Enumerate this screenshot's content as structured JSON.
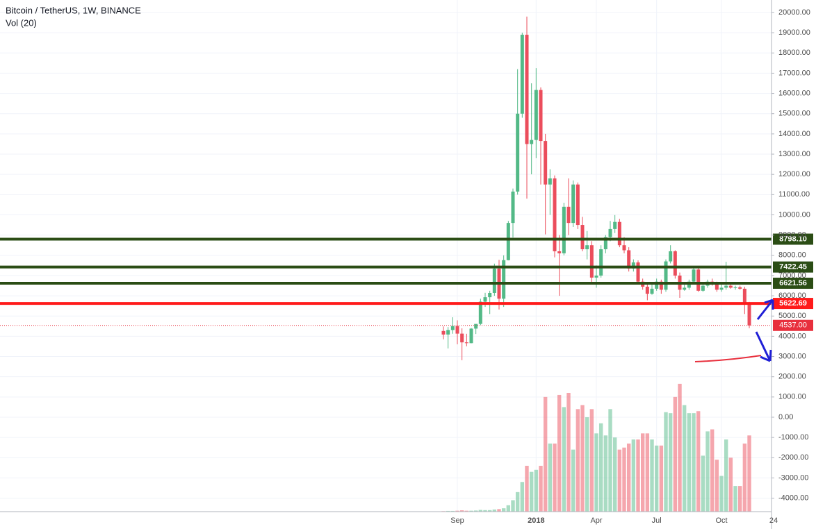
{
  "chart_data": {
    "type": "candlestick",
    "title": "Bitcoin / TetherUS, 1W, BINANCE",
    "subtitle": "Vol (20)",
    "categories": [
      null,
      null,
      null,
      "Sep",
      null,
      null,
      null,
      null,
      null,
      null,
      null,
      null,
      null,
      null,
      null,
      null,
      null,
      null,
      null,
      null,
      "2018",
      null,
      null,
      null,
      null,
      null,
      null,
      null,
      null,
      null,
      null,
      null,
      null,
      "Apr",
      null,
      null,
      null,
      null,
      null,
      null,
      null,
      null,
      null,
      null,
      null,
      null,
      "Jul",
      null,
      null,
      null,
      null,
      null,
      null,
      null,
      null,
      null,
      null,
      null,
      null,
      null,
      "Oct",
      null,
      null,
      null,
      null,
      null,
      null
    ],
    "time_edge_label": "24",
    "open": [
      4261,
      4086,
      4310,
      4509,
      4130,
      3699,
      3660,
      4378,
      4610,
      5710,
      5930,
      6140,
      7345,
      5857,
      7761,
      9600,
      11150,
      15000,
      18900,
      13500,
      13700,
      16170,
      13650,
      11500,
      11800,
      8200,
      8100,
      10400,
      9600,
      11500,
      9500,
      8300,
      8500,
      6900,
      7000,
      8300,
      8900,
      9300,
      9650,
      8500,
      8250,
      7350,
      7650,
      6700,
      6450,
      6100,
      6350,
      6700,
      6300,
      7700,
      8200,
      7000,
      6300,
      6400,
      6700,
      7300,
      6250,
      6500,
      6700,
      6600,
      6300,
      6400,
      6500,
      6400,
      6420,
      6350,
      5600
    ],
    "high": [
      4485,
      4453,
      4939,
      4788,
      4394,
      4123,
      4406,
      4470,
      5856,
      6147,
      6250,
      7590,
      7776,
      8000,
      9700,
      11300,
      17200,
      19000,
      19798,
      16500,
      17250,
      16300,
      14000,
      12250,
      11950,
      9000,
      10600,
      11800,
      11700,
      11600,
      9900,
      9200,
      8700,
      7500,
      8500,
      9000,
      9700,
      9990,
      9800,
      8900,
      8400,
      7800,
      7750,
      6850,
      6600,
      6550,
      6850,
      6800,
      7800,
      8500,
      8250,
      7150,
      6550,
      6800,
      7400,
      7400,
      6600,
      6800,
      6850,
      6700,
      6600,
      7680,
      6600,
      6500,
      6500,
      6450,
      5700
    ],
    "low": [
      3850,
      3400,
      4124,
      3603,
      2817,
      3505,
      3653,
      4110,
      4550,
      5450,
      5100,
      6000,
      5325,
      5450,
      7750,
      8880,
      11000,
      14800,
      10800,
      12000,
      12800,
      11500,
      9035,
      10000,
      7900,
      6000,
      8000,
      9000,
      9400,
      9300,
      8200,
      7800,
      6600,
      6400,
      6900,
      8100,
      8700,
      9100,
      8400,
      8100,
      7200,
      7200,
      6600,
      6300,
      5780,
      6050,
      6250,
      6100,
      6200,
      7600,
      6850,
      5900,
      6250,
      6300,
      6650,
      6200,
      6200,
      6400,
      6500,
      6200,
      6200,
      6300,
      6350,
      6300,
      6300,
      5100,
      4400
    ],
    "close": [
      4086,
      4310,
      4509,
      4130,
      3699,
      3660,
      4378,
      4610,
      5710,
      5930,
      6140,
      7345,
      5857,
      7761,
      9600,
      11150,
      15000,
      18900,
      13500,
      13700,
      16170,
      13650,
      11500,
      11800,
      8200,
      8100,
      10400,
      9600,
      11500,
      9500,
      8300,
      8500,
      6900,
      7000,
      8300,
      8900,
      9300,
      9650,
      8500,
      8250,
      7350,
      7650,
      6700,
      6450,
      6100,
      6350,
      6700,
      6300,
      7700,
      8200,
      7000,
      6300,
      6400,
      6700,
      7300,
      6250,
      6500,
      6700,
      6600,
      6300,
      6400,
      6500,
      6400,
      6420,
      6350,
      5600,
      4537
    ],
    "volume": [
      -4640,
      -4630,
      -4630,
      -4620,
      -4600,
      -4620,
      -4620,
      -4610,
      -4580,
      -4590,
      -4590,
      -4560,
      -4540,
      -4500,
      -4350,
      -4100,
      -3700,
      -3200,
      -2400,
      -2700,
      -2600,
      -2400,
      1000,
      -1300,
      -1300,
      1100,
      500,
      1200,
      -1600,
      400,
      600,
      0,
      400,
      -800,
      -300,
      -900,
      400,
      -1000,
      -1600,
      -1500,
      -1300,
      -1100,
      -1100,
      -800,
      -800,
      -1100,
      -1400,
      -1400,
      250,
      200,
      1000,
      1650,
      600,
      200,
      200,
      300,
      -1900,
      -700,
      -600,
      -2100,
      -2900,
      -1100,
      -2000,
      -3400,
      -3400,
      -1300,
      -900
    ],
    "up_color": "#53b987",
    "down_color": "#eb4d5c",
    "ylim": [
      -4666,
      20617
    ],
    "yticks": [
      {
        "value": 20000,
        "label": "20000.00"
      },
      {
        "value": 19000,
        "label": "19000.00"
      },
      {
        "value": 18000,
        "label": "18000.00"
      },
      {
        "value": 17000,
        "label": "17000.00"
      },
      {
        "value": 16000,
        "label": "16000.00"
      },
      {
        "value": 15000,
        "label": "15000.00"
      },
      {
        "value": 14000,
        "label": "14000.00"
      },
      {
        "value": 13000,
        "label": "13000.00"
      },
      {
        "value": 12000,
        "label": "12000.00"
      },
      {
        "value": 11000,
        "label": "11000.00"
      },
      {
        "value": 10000,
        "label": "10000.00"
      },
      {
        "value": 9000,
        "label": "9000.00"
      },
      {
        "value": 8000,
        "label": "8000.00"
      },
      {
        "value": 7000,
        "label": "7000.00"
      },
      {
        "value": 6000,
        "label": "6000.00"
      },
      {
        "value": 5000,
        "label": "5000.00"
      },
      {
        "value": 4000,
        "label": "4000.00"
      },
      {
        "value": 3000,
        "label": "3000.00"
      },
      {
        "value": 2000,
        "label": "2000.00"
      },
      {
        "value": 1000,
        "label": "1000.00"
      },
      {
        "value": 0,
        "label": "0.00"
      },
      {
        "value": -1000,
        "label": "-1000.00"
      },
      {
        "value": -2000,
        "label": "-2000.00"
      },
      {
        "value": -3000,
        "label": "-3000.00"
      },
      {
        "value": -4000,
        "label": "-4000.00"
      }
    ],
    "grid": true,
    "levels": [
      {
        "value": 8798.1,
        "label": "8798.10",
        "color": "#2b4d15"
      },
      {
        "value": 7422.45,
        "label": "7422.45",
        "color": "#2b4d15"
      },
      {
        "value": 6621.56,
        "label": "6621.56",
        "color": "#2b4d15"
      },
      {
        "value": 5622.69,
        "label": "5622.69",
        "color": "#ff1a1a"
      }
    ],
    "last_price": {
      "value": 4537,
      "label": "4537.00",
      "color": "#e8303d"
    }
  }
}
